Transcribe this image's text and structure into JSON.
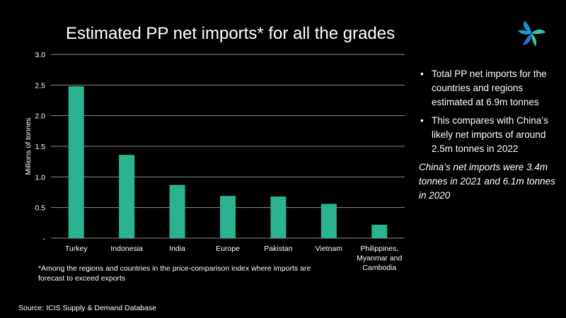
{
  "slide": {
    "title": "Estimated PP net imports* for all the grades",
    "footnote": "*Among the regions and countries in the price-comparison index where imports are forecast to exceed exports",
    "source": "Source: ICIS Supply & Demand Database"
  },
  "side_panel": {
    "bullets": [
      "Total PP net imports  for the countries and regions estimated at 6.9m tonnes",
      "This compares with China’s likely net imports of around 2.5m tonnes in 2022"
    ],
    "note": "China’s net imports were 3.4m tonnes in 2021 and 6.1m tonnes in 2020"
  },
  "colors": {
    "background": "#000000",
    "bar": "#2bb38f",
    "grid": "#8c8c8c",
    "text": "#ffffff"
  },
  "logo": {
    "icon": "icis-pinwheel-logo-icon"
  },
  "chart_data": {
    "type": "bar",
    "title": "",
    "xlabel": "",
    "ylabel": "Millions of tonnes",
    "categories": [
      "Turkey",
      "Indonesia",
      "India",
      "Europe",
      "Pakistan",
      "Vietnam",
      "Philippines, Myanmar and Cambodia"
    ],
    "values": [
      2.48,
      1.36,
      0.87,
      0.69,
      0.68,
      0.56,
      0.22
    ],
    "ylim": [
      0,
      3.0
    ],
    "yticks": [
      0,
      0.5,
      1.0,
      1.5,
      2.0,
      2.5,
      3.0
    ],
    "ytick_labels": [
      "-",
      "0.5",
      "1.0",
      "1.5",
      "2.0",
      "2.5",
      "3.0"
    ],
    "grid": true,
    "legend": "none"
  }
}
